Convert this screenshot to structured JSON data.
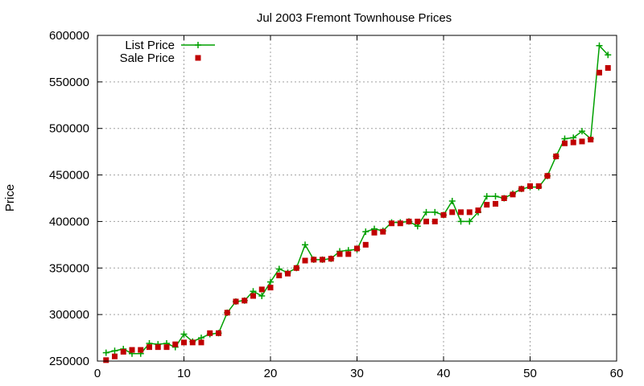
{
  "chart_data": {
    "type": "line",
    "title": "Jul 2003 Fremont Townhouse Prices",
    "xlabel": "",
    "ylabel": "Price",
    "xlim": [
      0,
      60
    ],
    "ylim": [
      250000,
      600000
    ],
    "xticks": [
      0,
      10,
      20,
      30,
      40,
      50,
      60
    ],
    "yticks": [
      250000,
      300000,
      350000,
      400000,
      450000,
      500000,
      550000,
      600000
    ],
    "grid": true,
    "legend_position": "top-left",
    "series": [
      {
        "name": "List Price",
        "style": "lines+points",
        "marker": "plus",
        "color": "#00a000",
        "x": [
          1,
          2,
          3,
          4,
          5,
          6,
          7,
          8,
          9,
          10,
          11,
          12,
          13,
          14,
          15,
          16,
          17,
          18,
          19,
          20,
          21,
          22,
          23,
          24,
          25,
          26,
          27,
          28,
          29,
          30,
          31,
          32,
          33,
          34,
          35,
          36,
          37,
          38,
          39,
          40,
          41,
          42,
          43,
          44,
          45,
          46,
          47,
          48,
          49,
          50,
          51,
          52,
          53,
          54,
          55,
          56,
          57,
          58,
          59
        ],
        "y": [
          259000,
          261000,
          263000,
          258000,
          258000,
          269000,
          268000,
          269000,
          265000,
          279000,
          271000,
          275000,
          279000,
          280000,
          302000,
          314000,
          315000,
          325000,
          320000,
          335000,
          349000,
          345000,
          350000,
          375000,
          359000,
          359000,
          360000,
          368000,
          369000,
          370000,
          389000,
          392000,
          390000,
          399000,
          399000,
          400000,
          395000,
          410000,
          410000,
          407000,
          422000,
          400000,
          400000,
          410000,
          427000,
          427000,
          425000,
          430000,
          435000,
          437000,
          437000,
          449000,
          470000,
          489000,
          490000,
          497000,
          489000,
          589000,
          579000
        ]
      },
      {
        "name": "Sale Price",
        "style": "points",
        "marker": "square",
        "color": "#c00000",
        "x": [
          1,
          2,
          3,
          4,
          5,
          6,
          7,
          8,
          9,
          10,
          11,
          12,
          13,
          14,
          15,
          16,
          17,
          18,
          19,
          20,
          21,
          22,
          23,
          24,
          25,
          26,
          27,
          28,
          29,
          30,
          31,
          32,
          33,
          34,
          35,
          36,
          37,
          38,
          39,
          40,
          41,
          42,
          43,
          44,
          45,
          46,
          47,
          48,
          49,
          50,
          51,
          52,
          53,
          54,
          55,
          56,
          57,
          58,
          59
        ],
        "y": [
          251000,
          255000,
          260000,
          262000,
          262000,
          265000,
          265000,
          265000,
          268000,
          270000,
          270000,
          270000,
          280000,
          280000,
          302000,
          314000,
          315000,
          320000,
          327000,
          329000,
          342000,
          344000,
          350000,
          358000,
          359000,
          359000,
          360000,
          365000,
          365000,
          371000,
          375000,
          388000,
          389000,
          398000,
          398000,
          400000,
          400000,
          400000,
          400000,
          407000,
          410000,
          410000,
          410000,
          412000,
          418000,
          419000,
          425000,
          429000,
          435000,
          438000,
          438000,
          449000,
          470000,
          484000,
          485000,
          486000,
          488000,
          560000,
          565000
        ]
      }
    ]
  }
}
